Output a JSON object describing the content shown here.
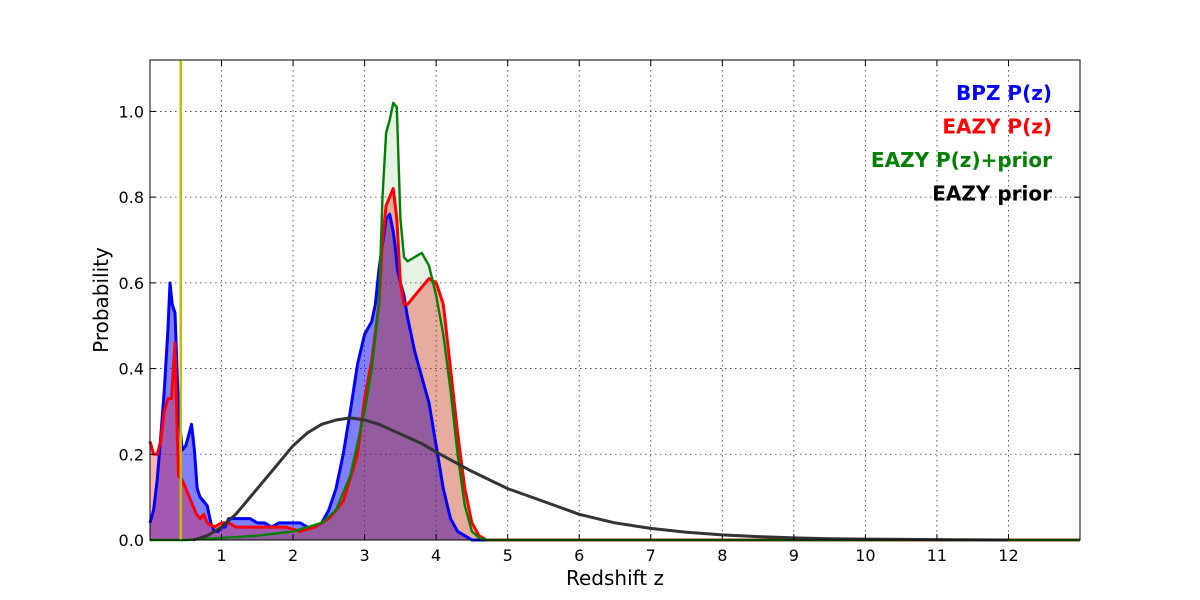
{
  "chart_data": {
    "type": "area",
    "xlabel": "Redshift z",
    "ylabel": "Probability",
    "xlim": [
      0,
      13
    ],
    "ylim": [
      0,
      1.12
    ],
    "xticks": [
      1,
      2,
      3,
      4,
      5,
      6,
      7,
      8,
      9,
      10,
      11,
      12
    ],
    "xtick_labels": [
      "1",
      "2",
      "3",
      "4",
      "5",
      "6",
      "7",
      "8",
      "9",
      "10",
      "11",
      "12"
    ],
    "yticks": [
      0.0,
      0.2,
      0.4,
      0.6,
      0.8,
      1.0
    ],
    "ytick_labels": [
      "0.0",
      "0.2",
      "0.4",
      "0.6",
      "0.8",
      "1.0"
    ],
    "grid": true,
    "legend_position": "top-right",
    "vertical_marker": {
      "x": 0.43,
      "color": "#bfbf00"
    },
    "series": [
      {
        "name": "BPZ P(z)",
        "color": "#0000ff",
        "fill": "#0000ff",
        "fill_opacity": 0.5,
        "x": [
          0,
          0.05,
          0.1,
          0.15,
          0.2,
          0.25,
          0.28,
          0.31,
          0.35,
          0.4,
          0.45,
          0.5,
          0.55,
          0.58,
          0.62,
          0.66,
          0.7,
          0.75,
          0.8,
          0.85,
          0.9,
          0.95,
          1.0,
          1.05,
          1.1,
          1.2,
          1.3,
          1.4,
          1.5,
          1.6,
          1.7,
          1.8,
          1.9,
          2.0,
          2.1,
          2.2,
          2.3,
          2.4,
          2.5,
          2.6,
          2.7,
          2.8,
          2.9,
          3.0,
          3.1,
          3.15,
          3.2,
          3.25,
          3.3,
          3.35,
          3.4,
          3.43,
          3.46,
          3.5,
          3.55,
          3.6,
          3.7,
          3.8,
          3.9,
          4.0,
          4.1,
          4.2,
          4.3,
          4.4,
          4.5,
          4.6,
          5.0,
          6.0,
          8.0,
          10.0,
          12.0,
          13.0
        ],
        "values": [
          0.04,
          0.07,
          0.14,
          0.24,
          0.35,
          0.49,
          0.6,
          0.55,
          0.53,
          0.3,
          0.21,
          0.22,
          0.25,
          0.27,
          0.21,
          0.12,
          0.1,
          0.09,
          0.08,
          0.04,
          0.02,
          0.02,
          0.03,
          0.03,
          0.05,
          0.05,
          0.05,
          0.05,
          0.04,
          0.04,
          0.03,
          0.04,
          0.04,
          0.04,
          0.04,
          0.03,
          0.03,
          0.04,
          0.07,
          0.12,
          0.2,
          0.3,
          0.41,
          0.48,
          0.51,
          0.55,
          0.63,
          0.69,
          0.75,
          0.76,
          0.72,
          0.68,
          0.63,
          0.6,
          0.57,
          0.52,
          0.44,
          0.38,
          0.32,
          0.22,
          0.12,
          0.05,
          0.02,
          0.01,
          0.0,
          0.0,
          0.0,
          0.0,
          0.0,
          0.0,
          0.0,
          0.0
        ]
      },
      {
        "name": "EAZY P(z)",
        "color": "#ff0000",
        "fill": "#ff0000",
        "fill_opacity": 0.3,
        "x": [
          0,
          0.05,
          0.1,
          0.15,
          0.2,
          0.25,
          0.3,
          0.35,
          0.38,
          0.4,
          0.45,
          0.5,
          0.55,
          0.6,
          0.65,
          0.7,
          0.75,
          0.8,
          0.9,
          1.0,
          1.1,
          1.2,
          1.3,
          1.5,
          1.7,
          1.9,
          2.1,
          2.3,
          2.5,
          2.7,
          2.9,
          3.0,
          3.1,
          3.2,
          3.25,
          3.3,
          3.35,
          3.4,
          3.45,
          3.5,
          3.55,
          3.6,
          3.7,
          3.8,
          3.9,
          4.0,
          4.1,
          4.2,
          4.3,
          4.4,
          4.5,
          4.6,
          4.7,
          5.0,
          6.0,
          8.0,
          10.0,
          12.0,
          13.0
        ],
        "values": [
          0.23,
          0.2,
          0.2,
          0.23,
          0.3,
          0.33,
          0.33,
          0.46,
          0.25,
          0.15,
          0.14,
          0.12,
          0.1,
          0.08,
          0.06,
          0.05,
          0.06,
          0.04,
          0.03,
          0.04,
          0.04,
          0.03,
          0.03,
          0.03,
          0.03,
          0.03,
          0.02,
          0.03,
          0.05,
          0.09,
          0.2,
          0.33,
          0.42,
          0.55,
          0.7,
          0.78,
          0.8,
          0.82,
          0.75,
          0.6,
          0.55,
          0.55,
          0.57,
          0.59,
          0.61,
          0.6,
          0.55,
          0.4,
          0.25,
          0.12,
          0.04,
          0.01,
          0.0,
          0.0,
          0.0,
          0.0,
          0.0,
          0.0,
          0.0
        ]
      },
      {
        "name": "EAZY P(z)+prior",
        "color": "#008000",
        "fill": "#008000",
        "fill_opacity": 0.1,
        "x": [
          0,
          0.5,
          1.0,
          1.5,
          2.0,
          2.2,
          2.4,
          2.6,
          2.8,
          3.0,
          3.1,
          3.2,
          3.25,
          3.3,
          3.35,
          3.4,
          3.45,
          3.5,
          3.55,
          3.6,
          3.7,
          3.8,
          3.9,
          4.0,
          4.1,
          4.2,
          4.3,
          4.4,
          4.5,
          4.6,
          4.7,
          5.0,
          6.0,
          8.0,
          10.0,
          12.0,
          13.0
        ],
        "values": [
          0.0,
          0.0,
          0.005,
          0.01,
          0.02,
          0.03,
          0.04,
          0.07,
          0.15,
          0.3,
          0.4,
          0.55,
          0.8,
          0.95,
          0.98,
          1.02,
          1.01,
          0.75,
          0.66,
          0.65,
          0.66,
          0.67,
          0.64,
          0.57,
          0.48,
          0.35,
          0.2,
          0.08,
          0.02,
          0.005,
          0.0,
          0.0,
          0.0,
          0.0,
          0.0,
          0.0,
          0.0
        ]
      },
      {
        "name": "EAZY prior",
        "color": "#333333",
        "fill": "none",
        "fill_opacity": 0,
        "x": [
          0.6,
          0.8,
          1.0,
          1.2,
          1.4,
          1.6,
          1.8,
          2.0,
          2.2,
          2.4,
          2.6,
          2.8,
          3.0,
          3.2,
          3.4,
          3.6,
          3.8,
          4.0,
          4.5,
          5.0,
          5.5,
          6.0,
          6.5,
          7.0,
          7.5,
          8.0,
          8.5,
          9.0,
          9.5,
          10.0,
          11.0,
          12.0
        ],
        "values": [
          0.0,
          0.01,
          0.03,
          0.06,
          0.1,
          0.14,
          0.18,
          0.22,
          0.25,
          0.27,
          0.28,
          0.285,
          0.28,
          0.27,
          0.255,
          0.24,
          0.225,
          0.205,
          0.16,
          0.12,
          0.09,
          0.06,
          0.04,
          0.027,
          0.018,
          0.012,
          0.008,
          0.005,
          0.003,
          0.002,
          0.001,
          0.0
        ]
      }
    ]
  }
}
